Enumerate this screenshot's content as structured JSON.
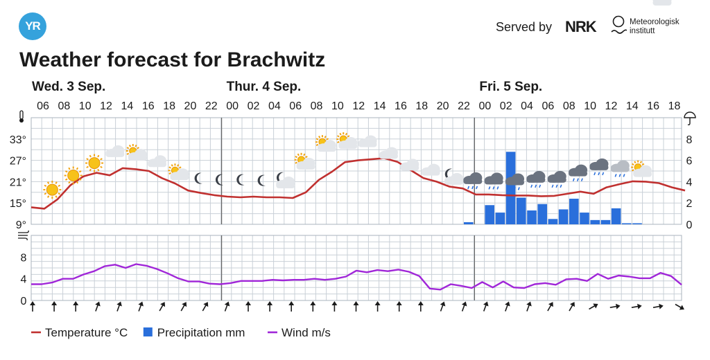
{
  "header": {
    "logo_text": "YR",
    "served_by": "Served by",
    "nrk_logo_text": "NRK",
    "met_line1": "Meteorologisk",
    "met_line2": "institutt"
  },
  "page_title": "Weather forecast for Brachwitz",
  "chart_data": {
    "type": "line",
    "days": [
      {
        "label": "Wed. 3 Sep.",
        "start_index": 0
      },
      {
        "label": "Thur. 4 Sep.",
        "start_index": 9
      },
      {
        "label": "Fri. 5 Sep.",
        "start_index": 21
      }
    ],
    "hours": [
      "06",
      "08",
      "10",
      "12",
      "14",
      "16",
      "18",
      "20",
      "22",
      "00",
      "02",
      "04",
      "06",
      "08",
      "10",
      "12",
      "14",
      "16",
      "18",
      "20",
      "22",
      "00",
      "02",
      "04",
      "06",
      "08",
      "10",
      "12",
      "14",
      "16",
      "18"
    ],
    "temperature_axis": {
      "ticks": [
        "33°",
        "27°",
        "21°",
        "15°",
        "9°"
      ],
      "values": [
        33,
        27,
        21,
        15,
        9
      ],
      "ylim": [
        9,
        39
      ]
    },
    "precip_axis": {
      "ticks": [
        "8",
        "6",
        "4",
        "2",
        "0"
      ],
      "values": [
        8,
        6,
        4,
        2,
        0
      ],
      "ylim": [
        0,
        10
      ]
    },
    "wind_axis": {
      "ticks": [
        "8",
        "4",
        "0"
      ],
      "values": [
        8,
        4,
        0
      ],
      "ylim": [
        0,
        12
      ]
    },
    "temperature": [
      13.8,
      13.4,
      16.0,
      20.0,
      22.5,
      23.5,
      22.8,
      24.8,
      24.5,
      24.0,
      22.0,
      20.5,
      18.5,
      17.8,
      17.2,
      16.8,
      16.6,
      16.8,
      16.6,
      16.6,
      16.4,
      18.0,
      21.5,
      23.8,
      26.5,
      27.0,
      27.3,
      27.6,
      26.6,
      24.3,
      22.0,
      21.0,
      19.6,
      19.1,
      17.4,
      17.4,
      17.2,
      17.1,
      17.1,
      16.9,
      17.0,
      17.6,
      18.2,
      17.6,
      19.4,
      20.3,
      21.1,
      21.0,
      20.6,
      19.4,
      18.5
    ],
    "precipitation": [
      {
        "index": 20.5,
        "value": 0.2
      },
      {
        "index": 21.5,
        "value": 1.8
      },
      {
        "index": 22,
        "value": 1.1
      },
      {
        "index": 22.5,
        "value": 6.8
      },
      {
        "index": 23,
        "value": 2.5
      },
      {
        "index": 23.5,
        "value": 1.3
      },
      {
        "index": 24,
        "value": 1.9
      },
      {
        "index": 24.5,
        "value": 0.5
      },
      {
        "index": 25,
        "value": 1.4
      },
      {
        "index": 25.5,
        "value": 2.4
      },
      {
        "index": 26,
        "value": 1.1
      },
      {
        "index": 26.5,
        "value": 0.4
      },
      {
        "index": 27,
        "value": 0.4
      },
      {
        "index": 27.5,
        "value": 1.5
      },
      {
        "index": 28,
        "value": 0.1
      },
      {
        "index": 28.5,
        "value": 0.1
      }
    ],
    "wind": [
      3.0,
      3.0,
      3.3,
      4.0,
      4.0,
      4.8,
      5.4,
      6.3,
      6.6,
      6.0,
      6.7,
      6.4,
      5.8,
      5.0,
      4.1,
      3.5,
      3.5,
      3.1,
      3.0,
      3.2,
      3.6,
      3.6,
      3.6,
      3.8,
      3.7,
      3.8,
      3.8,
      4.0,
      3.8,
      4.0,
      4.4,
      5.5,
      5.2,
      5.6,
      5.4,
      5.7,
      5.3,
      4.5,
      2.2,
      2.0,
      3.0,
      2.7,
      2.3,
      3.4,
      2.4,
      3.5,
      2.4,
      2.3,
      3.0,
      3.2,
      2.9,
      3.9,
      4.0,
      3.6,
      4.9,
      4.0,
      4.6,
      4.4,
      4.1,
      4.1,
      5.1,
      4.5,
      2.9
    ],
    "weather_icons": [
      {
        "index": 1,
        "icon": "sun"
      },
      {
        "index": 2,
        "icon": "sun"
      },
      {
        "index": 3,
        "icon": "sun"
      },
      {
        "index": 4,
        "icon": "cloud"
      },
      {
        "index": 5,
        "icon": "partly-cloudy-day"
      },
      {
        "index": 6,
        "icon": "cloud"
      },
      {
        "index": 7,
        "icon": "partly-cloudy-day"
      },
      {
        "index": 8,
        "icon": "moon"
      },
      {
        "index": 9,
        "icon": "moon"
      },
      {
        "index": 10,
        "icon": "moon"
      },
      {
        "index": 11,
        "icon": "moon"
      },
      {
        "index": 12,
        "icon": "partly-cloudy-night"
      },
      {
        "index": 13,
        "icon": "partly-cloudy-day"
      },
      {
        "index": 14,
        "icon": "partly-cloudy-day"
      },
      {
        "index": 15,
        "icon": "partly-cloudy-day"
      },
      {
        "index": 16,
        "icon": "cloud"
      },
      {
        "index": 17,
        "icon": "cloud"
      },
      {
        "index": 18,
        "icon": "cloud"
      },
      {
        "index": 19,
        "icon": "cloud"
      },
      {
        "index": 20,
        "icon": "partly-cloudy-night"
      },
      {
        "index": 21,
        "icon": "dark-cloud-rain"
      },
      {
        "index": 22,
        "icon": "rain"
      },
      {
        "index": 23,
        "icon": "rain"
      },
      {
        "index": 24,
        "icon": "rain"
      },
      {
        "index": 25,
        "icon": "rain"
      },
      {
        "index": 26,
        "icon": "rain"
      },
      {
        "index": 27,
        "icon": "rain"
      },
      {
        "index": 28,
        "icon": "cloud-rain"
      },
      {
        "index": 29,
        "icon": "partly-cloudy-day"
      },
      {
        "index": 30,
        "icon": "cloud"
      }
    ],
    "wind_directions_deg": [
      0,
      0,
      0,
      20,
      20,
      20,
      30,
      30,
      30,
      20,
      0,
      0,
      0,
      0,
      0,
      0,
      0,
      0,
      0,
      20,
      20,
      20,
      20,
      20,
      30,
      30,
      60,
      80,
      80,
      80,
      120
    ],
    "legend": [
      {
        "name": "Temperature °C",
        "color": "#c0302f",
        "shape": "line"
      },
      {
        "name": "Precipitation mm",
        "color": "#2a6fdb",
        "shape": "square"
      },
      {
        "name": "Wind m/s",
        "color": "#a026d8",
        "shape": "line"
      }
    ],
    "colors": {
      "temperature": "#c0302f",
      "precipitation": "#2a6fdb",
      "wind": "#a026d8",
      "grid": "#c9d0d7",
      "day_divider": "#666666"
    }
  }
}
